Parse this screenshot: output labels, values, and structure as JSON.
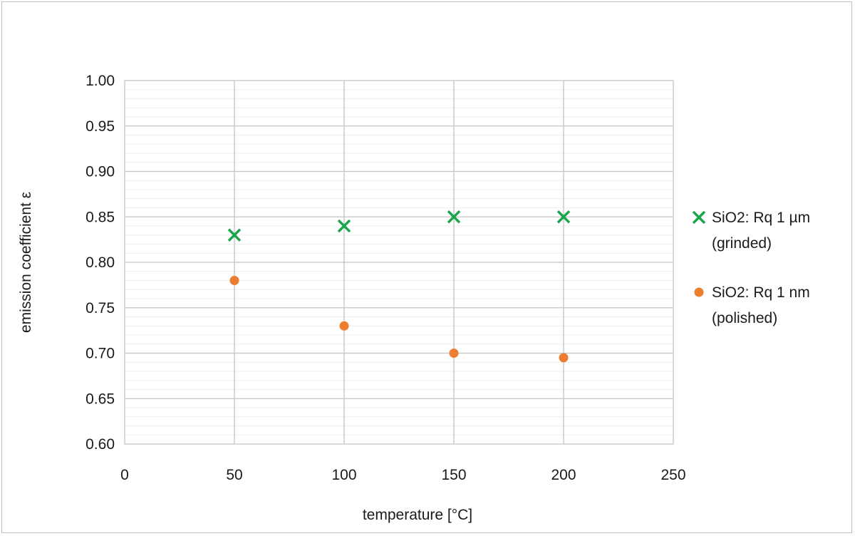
{
  "chart_data": {
    "type": "scatter",
    "title": "",
    "xlabel": "temperature [°C]",
    "ylabel": "emission coefficient ε",
    "xlim": [
      0,
      250
    ],
    "ylim": [
      0.6,
      1.0
    ],
    "x_ticks": [
      "0",
      "50",
      "100",
      "150",
      "200",
      "250"
    ],
    "y_ticks": [
      "0.60",
      "0.65",
      "0.70",
      "0.75",
      "0.80",
      "0.85",
      "0.90",
      "0.95",
      "1.00"
    ],
    "grid": true,
    "legend_position": "right",
    "series": [
      {
        "name": "SiO2: Rq 1 µm (grinded)",
        "legend_lines": [
          "SiO2: Rq 1 µm",
          "(grinded)"
        ],
        "marker": "x",
        "color": "#1aa54a",
        "x": [
          50,
          100,
          150,
          200
        ],
        "y": [
          0.83,
          0.84,
          0.85,
          0.85
        ]
      },
      {
        "name": "SiO2: Rq 1 nm (polished)",
        "legend_lines": [
          "SiO2: Rq 1 nm",
          "(polished)"
        ],
        "marker": "circle",
        "color": "#ed7d31",
        "x": [
          50,
          100,
          150,
          200
        ],
        "y": [
          0.78,
          0.73,
          0.7,
          0.695
        ]
      }
    ]
  }
}
